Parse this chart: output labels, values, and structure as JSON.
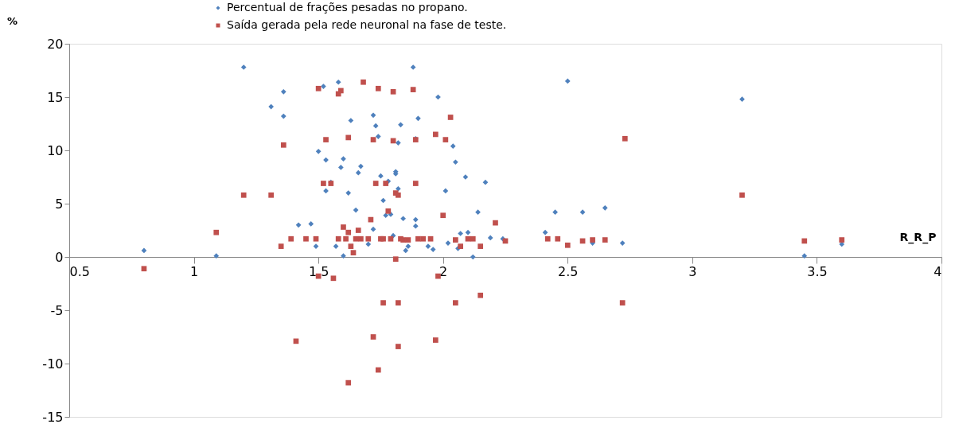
{
  "chart_data": {
    "type": "scatter",
    "xlabel": "R_R_P",
    "ylabel": "%",
    "xlim": [
      0.5,
      4
    ],
    "xticks": [
      0.5,
      1,
      1.5,
      2,
      2.5,
      3,
      3.5,
      4
    ],
    "ylim": [
      -15,
      20
    ],
    "yticks": [
      -15,
      -10,
      -5,
      0,
      5,
      10,
      15,
      20
    ],
    "grid": false,
    "legend": "top left",
    "series": [
      {
        "name": "Percentual de frações pesadas no propano.",
        "color": "#4f81bd",
        "marker": "diamond",
        "x": [
          0.8,
          1.09,
          1.2,
          1.31,
          1.36,
          1.36,
          1.42,
          1.47,
          1.49,
          1.5,
          1.52,
          1.53,
          1.53,
          1.55,
          1.57,
          1.58,
          1.59,
          1.6,
          1.6,
          1.62,
          1.63,
          1.65,
          1.66,
          1.67,
          1.7,
          1.72,
          1.73,
          1.72,
          1.74,
          1.75,
          1.76,
          1.77,
          1.78,
          1.79,
          1.8,
          1.81,
          1.81,
          1.82,
          1.83,
          1.82,
          1.84,
          1.86,
          1.85,
          1.88,
          1.89,
          1.89,
          1.89,
          1.9,
          1.94,
          1.96,
          1.98,
          2.01,
          2.02,
          2.04,
          2.05,
          2.06,
          2.07,
          2.09,
          2.1,
          2.12,
          2.14,
          2.17,
          2.19,
          2.24,
          2.41,
          2.45,
          2.5,
          2.56,
          2.6,
          2.65,
          2.72,
          3.2,
          3.45,
          3.6
        ],
        "values": [
          0.6,
          0.1,
          17.8,
          14.1,
          15.5,
          13.2,
          3.0,
          3.1,
          1.0,
          9.9,
          16.0,
          9.1,
          6.2,
          7.0,
          1.0,
          16.4,
          8.4,
          9.2,
          0.1,
          6.0,
          12.8,
          4.4,
          7.9,
          8.5,
          1.2,
          13.3,
          12.3,
          2.6,
          11.3,
          7.6,
          5.3,
          3.9,
          7.1,
          4.0,
          2.0,
          8.0,
          7.8,
          10.7,
          12.4,
          6.4,
          3.6,
          1.0,
          0.6,
          17.8,
          11.1,
          3.5,
          2.9,
          13.0,
          1.0,
          0.7,
          15.0,
          6.2,
          1.3,
          10.4,
          8.9,
          0.8,
          2.2,
          7.5,
          2.3,
          0.0,
          4.2,
          7.0,
          1.8,
          1.7,
          2.3,
          4.2,
          16.5,
          4.2,
          1.3,
          4.6,
          1.3,
          14.8,
          0.1,
          1.2
        ]
      },
      {
        "name": "Saída gerada pela rede neuronal na fase de teste.",
        "color": "#c0504d",
        "marker": "square",
        "x": [
          0.8,
          1.09,
          1.2,
          1.31,
          1.35,
          1.36,
          1.39,
          1.45,
          1.5,
          1.49,
          1.5,
          1.52,
          1.53,
          1.55,
          1.56,
          1.58,
          1.59,
          1.58,
          1.6,
          1.61,
          1.62,
          1.62,
          1.63,
          1.64,
          1.65,
          1.66,
          1.67,
          1.68,
          1.7,
          1.71,
          1.72,
          1.73,
          1.74,
          1.75,
          1.76,
          1.77,
          1.78,
          1.79,
          1.8,
          1.8,
          1.81,
          1.81,
          1.82,
          1.83,
          1.84,
          1.86,
          1.88,
          1.89,
          1.89,
          1.9,
          1.92,
          1.95,
          1.97,
          2.0,
          2.01,
          2.03,
          2.05,
          2.07,
          2.1,
          2.12,
          2.15,
          2.21,
          2.25,
          2.42,
          2.46,
          2.5,
          2.56,
          2.6,
          2.65,
          2.73,
          2.72,
          3.2,
          3.45,
          3.6,
          1.41,
          1.72,
          1.74,
          1.76,
          1.82,
          1.82,
          1.97,
          1.98,
          2.05,
          2.15,
          1.62
        ],
        "values": [
          -1.1,
          2.3,
          5.8,
          5.8,
          1.0,
          10.5,
          1.7,
          1.7,
          -1.8,
          1.7,
          15.8,
          6.9,
          11.0,
          6.9,
          -2.0,
          15.3,
          15.6,
          1.7,
          2.8,
          1.7,
          11.2,
          2.3,
          1.0,
          0.4,
          1.7,
          2.5,
          1.7,
          16.4,
          1.7,
          3.5,
          11.0,
          6.9,
          15.8,
          1.7,
          1.7,
          6.9,
          4.3,
          1.7,
          15.5,
          10.9,
          -0.2,
          6.0,
          5.8,
          1.7,
          1.6,
          1.6,
          15.7,
          11.0,
          6.9,
          1.7,
          1.7,
          1.7,
          11.5,
          3.9,
          11.0,
          13.1,
          1.6,
          1.0,
          1.7,
          1.7,
          1.0,
          3.2,
          1.5,
          1.7,
          1.7,
          1.1,
          1.5,
          1.6,
          1.6,
          11.1,
          -4.3,
          5.8,
          1.5,
          1.6,
          -7.9,
          -7.5,
          -10.6,
          -4.3,
          -4.3,
          -8.4,
          -7.8,
          -1.8,
          -4.3,
          -3.6,
          -11.8
        ]
      }
    ]
  }
}
